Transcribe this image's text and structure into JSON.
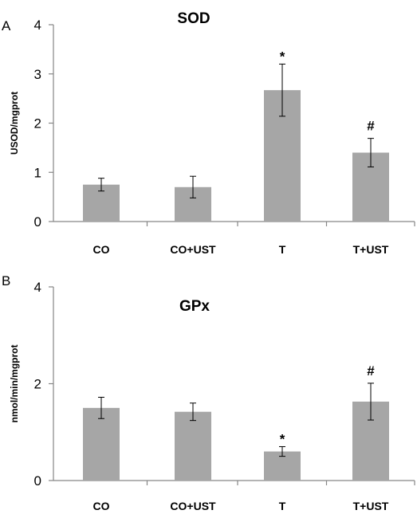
{
  "chart_data": [
    {
      "type": "bar",
      "panel_label": "A",
      "title": "SOD",
      "ylabel": "USOD/mgprot",
      "ylim": [
        0,
        4
      ],
      "yticks": [
        "0",
        "1",
        "2",
        "3",
        "4"
      ],
      "categories": [
        "CO",
        "CO+UST",
        "T",
        "T+UST"
      ],
      "values": [
        0.75,
        0.7,
        2.67,
        1.4
      ],
      "errors": [
        0.13,
        0.22,
        0.53,
        0.29
      ],
      "annotations": [
        "",
        "",
        "*",
        "#"
      ],
      "color": "#a6a6a6"
    },
    {
      "type": "bar",
      "panel_label": "B",
      "title": "GPx",
      "ylabel": "nmol/min/mgprot",
      "ylim": [
        0,
        4
      ],
      "yticks": [
        "0",
        "2",
        "4"
      ],
      "categories": [
        "CO",
        "CO+UST",
        "T",
        "T+UST"
      ],
      "values": [
        1.5,
        1.42,
        0.6,
        1.63
      ],
      "errors": [
        0.22,
        0.18,
        0.1,
        0.38
      ],
      "annotations": [
        "",
        "",
        "*",
        "#"
      ],
      "color": "#a6a6a6"
    }
  ]
}
